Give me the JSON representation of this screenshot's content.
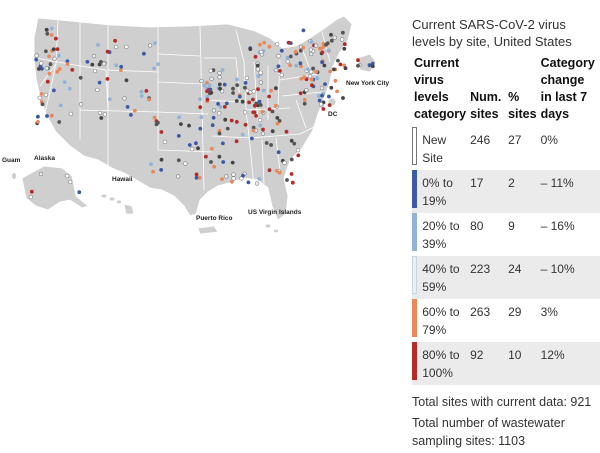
{
  "map": {
    "region_labels": {
      "guam": "Guam",
      "alaska": "Alaska",
      "hawaii": "Hawaii",
      "puerto_rico": "Puerto Rico",
      "usvi": "US Virgin Islands",
      "new_york_city": "New York City",
      "dc": "DC"
    },
    "category_colors": {
      "new_site": "#ffffff",
      "cat_0_19": "#3b5ba5",
      "cat_20_39": "#8fb3d9",
      "cat_40_59": "#e6f1f6",
      "cat_60_79": "#e8895a",
      "cat_80_100": "#b52b27"
    }
  },
  "legend": {
    "title": "Current SARS-CoV-2 virus levels by site, United States",
    "headers": {
      "category": "Current virus levels category",
      "num_sites": "Num. sites",
      "pct_sites": "% sites",
      "change": "Category change in last 7 days"
    },
    "rows": [
      {
        "category": "New Site",
        "num": "246",
        "pct": "27",
        "change": "0%",
        "color": "#ffffff"
      },
      {
        "category": "0% to 19%",
        "num": "17",
        "pct": "2",
        "change": "– 11%",
        "color": "#3b5ba5"
      },
      {
        "category": "20% to 39%",
        "num": "80",
        "pct": "9",
        "change": "– 16%",
        "color": "#8fb3d9"
      },
      {
        "category": "40% to 59%",
        "num": "223",
        "pct": "24",
        "change": "– 10%",
        "color": "#e6f1f6"
      },
      {
        "category": "60% to 79%",
        "num": "263",
        "pct": "29",
        "change": "3%",
        "color": "#e8895a"
      },
      {
        "category": "80% to 100%",
        "num": "92",
        "pct": "10",
        "change": "12%",
        "color": "#b52b27"
      }
    ],
    "totals": {
      "current": "Total sites with current data: 921",
      "sampling": "Total number of wastewater sampling sites: 1103"
    }
  }
}
